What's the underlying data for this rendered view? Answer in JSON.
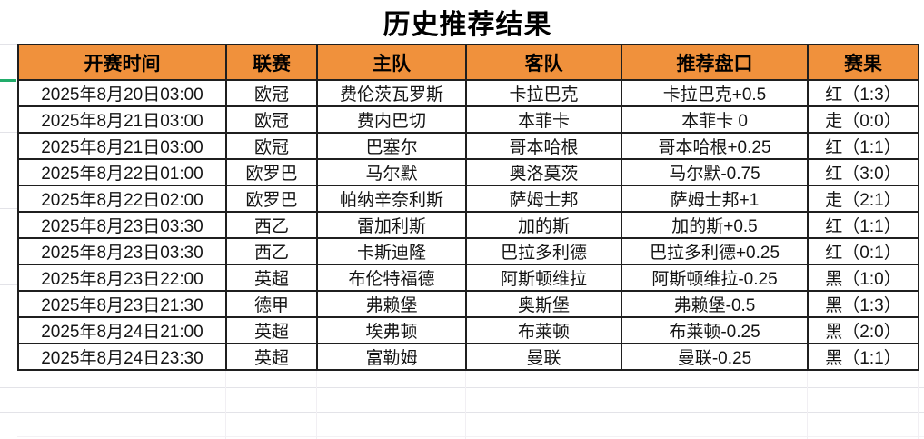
{
  "title": "历史推荐结果",
  "table": {
    "headers": [
      "开赛时间",
      "联赛",
      "主队",
      "客队",
      "推荐盘口",
      "赛果"
    ],
    "rows": [
      {
        "time": "2025年8月20日03:00",
        "league": "欧冠",
        "home": "费伦茨瓦罗斯",
        "away": "卡拉巴克",
        "handicap": "卡拉巴克+0.5",
        "result": "红（1:3）",
        "result_type": "red"
      },
      {
        "time": "2025年8月21日03:00",
        "league": "欧冠",
        "home": "费内巴切",
        "away": "本菲卡",
        "handicap": "本菲卡 0",
        "result": "走（0:0）",
        "result_type": "orange"
      },
      {
        "time": "2025年8月21日03:00",
        "league": "欧冠",
        "home": "巴塞尔",
        "away": "哥本哈根",
        "handicap": "哥本哈根+0.25",
        "result": "红（1:1）",
        "result_type": "red"
      },
      {
        "time": "2025年8月22日01:00",
        "league": "欧罗巴",
        "home": "马尔默",
        "away": "奥洛莫茨",
        "handicap": "马尔默-0.75",
        "result": "红（3:0）",
        "result_type": "red"
      },
      {
        "time": "2025年8月22日02:00",
        "league": "欧罗巴",
        "home": "帕纳辛奈利斯",
        "away": "萨姆士邦",
        "handicap": "萨姆士邦+1",
        "result": "走（2:1）",
        "result_type": "orange"
      },
      {
        "time": "2025年8月23日03:30",
        "league": "西乙",
        "home": "雷加利斯",
        "away": "加的斯",
        "handicap": "加的斯+0.5",
        "result": "红（1:1）",
        "result_type": "red"
      },
      {
        "time": "2025年8月23日03:30",
        "league": "西乙",
        "home": "卡斯迪隆",
        "away": "巴拉多利德",
        "handicap": "巴拉多利德+0.25",
        "result": "红（0:1）",
        "result_type": "red"
      },
      {
        "time": "2025年8月23日22:00",
        "league": "英超",
        "home": "布伦特福德",
        "away": "阿斯顿维拉",
        "handicap": "阿斯顿维拉-0.25",
        "result": "黑（1:0）",
        "result_type": "black"
      },
      {
        "time": "2025年8月23日21:30",
        "league": "德甲",
        "home": "弗赖堡",
        "away": "奥斯堡",
        "handicap": "弗赖堡-0.5",
        "result": "黑（1:3）",
        "result_type": "black"
      },
      {
        "time": "2025年8月24日21:00",
        "league": "英超",
        "home": "埃弗顿",
        "away": "布莱顿",
        "handicap": "布莱顿-0.25",
        "result": "黑（2:0）",
        "result_type": "black"
      },
      {
        "time": "2025年8月24日23:30",
        "league": "英超",
        "home": "富勒姆",
        "away": "曼联",
        "handicap": "曼联-0.25",
        "result": "黑（1:1）",
        "result_type": "black"
      }
    ]
  },
  "colors": {
    "header_bg": "#f0913c",
    "result_red": "#c03b31",
    "result_orange": "#e9803c",
    "result_black": "#1c1c1c",
    "green_accent": "#22ac6b"
  }
}
